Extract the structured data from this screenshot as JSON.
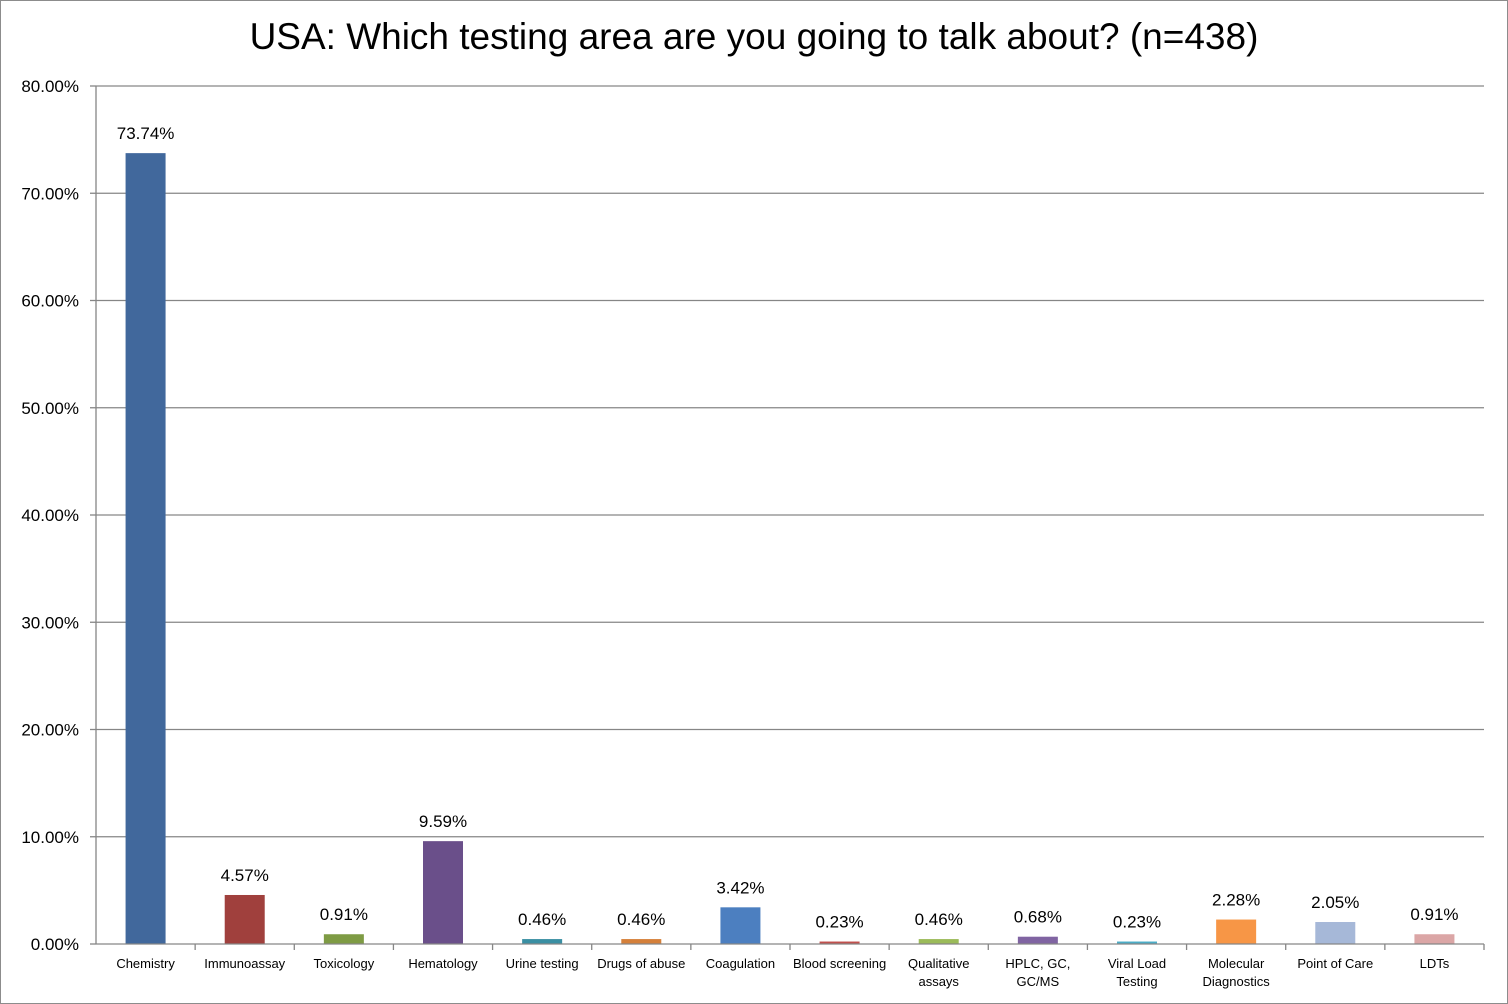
{
  "chart_data": {
    "type": "bar",
    "title": "USA: Which testing area are you going to talk about? (n=438)",
    "xlabel": "",
    "ylabel": "",
    "ylim": [
      0,
      80
    ],
    "y_ticks": [
      "0.00%",
      "10.00%",
      "20.00%",
      "30.00%",
      "40.00%",
      "50.00%",
      "60.00%",
      "70.00%",
      "80.00%"
    ],
    "grid": true,
    "legend": "none",
    "categories": [
      [
        "Chemistry"
      ],
      [
        "Immunoassay"
      ],
      [
        "Toxicology"
      ],
      [
        "Hematology"
      ],
      [
        "Urine testing"
      ],
      [
        "Drugs of abuse"
      ],
      [
        "Coagulation"
      ],
      [
        "Blood screening"
      ],
      [
        "Qualitative",
        "assays"
      ],
      [
        "HPLC, GC,",
        "GC/MS"
      ],
      [
        "Viral Load",
        "Testing"
      ],
      [
        "Molecular",
        "Diagnostics"
      ],
      [
        "Point of Care"
      ],
      [
        "LDTs"
      ]
    ],
    "values": [
      73.74,
      4.57,
      0.91,
      9.59,
      0.46,
      0.46,
      3.42,
      0.23,
      0.46,
      0.68,
      0.23,
      2.28,
      2.05,
      0.91
    ],
    "data_labels": [
      "73.74%",
      "4.57%",
      "0.91%",
      "9.59%",
      "0.46%",
      "0.46%",
      "3.42%",
      "0.23%",
      "0.46%",
      "0.68%",
      "0.23%",
      "2.28%",
      "2.05%",
      "0.91%"
    ],
    "colors": [
      "#41689c",
      "#a0403d",
      "#7e9b44",
      "#6a4f8a",
      "#3a8fa3",
      "#d5803a",
      "#4c7fc0",
      "#c0504d",
      "#9bbb59",
      "#8064a2",
      "#4bacc6",
      "#f79646",
      "#a6b8d8",
      "#dba6a6"
    ]
  }
}
